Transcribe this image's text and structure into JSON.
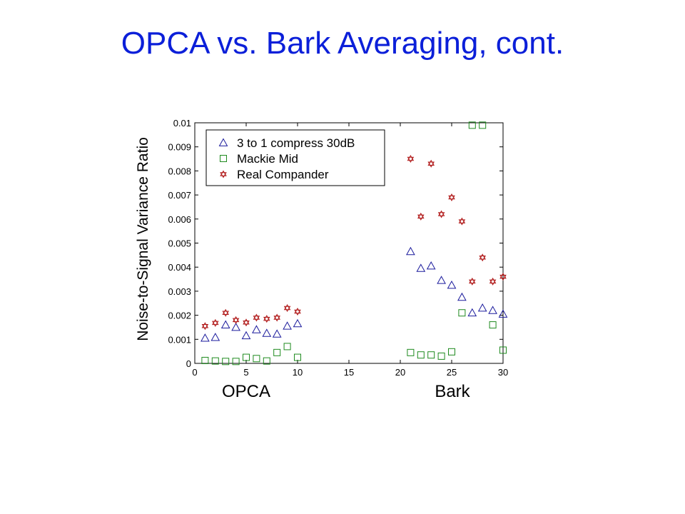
{
  "slide": {
    "title": "OPCA vs. Bark Averaging, cont."
  },
  "chart_data": {
    "type": "scatter",
    "ylabel": "Noise-to-Signal Variance Ratio",
    "region_labels": [
      "OPCA",
      "Bark"
    ],
    "xlim": [
      0,
      30
    ],
    "ylim": [
      0,
      0.01
    ],
    "x_ticks": [
      "0",
      "5",
      "10",
      "15",
      "20",
      "25",
      "30"
    ],
    "y_ticks": [
      "0",
      "0.001",
      "0.002",
      "0.003",
      "0.004",
      "0.005",
      "0.006",
      "0.007",
      "0.008",
      "0.009",
      "0.01"
    ],
    "grid": false,
    "legend_position": "top-left",
    "series": [
      {
        "name": "3 to 1 compress 30dB",
        "marker": "triangle",
        "color": "#1a1a9c",
        "x": [
          1,
          2,
          3,
          4,
          5,
          6,
          7,
          8,
          9,
          10,
          21,
          22,
          23,
          24,
          25,
          26,
          27,
          28,
          29,
          30
        ],
        "y": [
          0.00105,
          0.00108,
          0.0016,
          0.0015,
          0.00115,
          0.0014,
          0.00125,
          0.00122,
          0.00155,
          0.00165,
          0.00465,
          0.00395,
          0.00405,
          0.00345,
          0.00325,
          0.00275,
          0.0021,
          0.0023,
          0.0022,
          0.00205
        ]
      },
      {
        "name": "Mackie Mid",
        "marker": "square",
        "color": "#1e8a1e",
        "x": [
          1,
          2,
          3,
          4,
          5,
          6,
          7,
          8,
          9,
          10,
          21,
          22,
          23,
          24,
          25,
          26,
          27,
          28,
          29,
          30
        ],
        "y": [
          0.00012,
          0.0001,
          8e-05,
          8e-05,
          0.00025,
          0.0002,
          0.0001,
          0.00045,
          0.0007,
          0.00025,
          0.00045,
          0.00035,
          0.00035,
          0.0003,
          0.00048,
          0.0021,
          0.0099,
          0.0099,
          0.0016,
          0.00055
        ]
      },
      {
        "name": "Real Compander",
        "marker": "star",
        "color": "#b01818",
        "x": [
          1,
          2,
          3,
          4,
          5,
          6,
          7,
          8,
          9,
          10,
          21,
          22,
          23,
          24,
          25,
          26,
          27,
          28,
          29,
          30
        ],
        "y": [
          0.00155,
          0.00168,
          0.0021,
          0.0018,
          0.0017,
          0.0019,
          0.00185,
          0.0019,
          0.0023,
          0.00215,
          0.0085,
          0.0061,
          0.0083,
          0.0062,
          0.0069,
          0.0059,
          0.0034,
          0.0044,
          0.0034,
          0.0036
        ]
      }
    ]
  }
}
